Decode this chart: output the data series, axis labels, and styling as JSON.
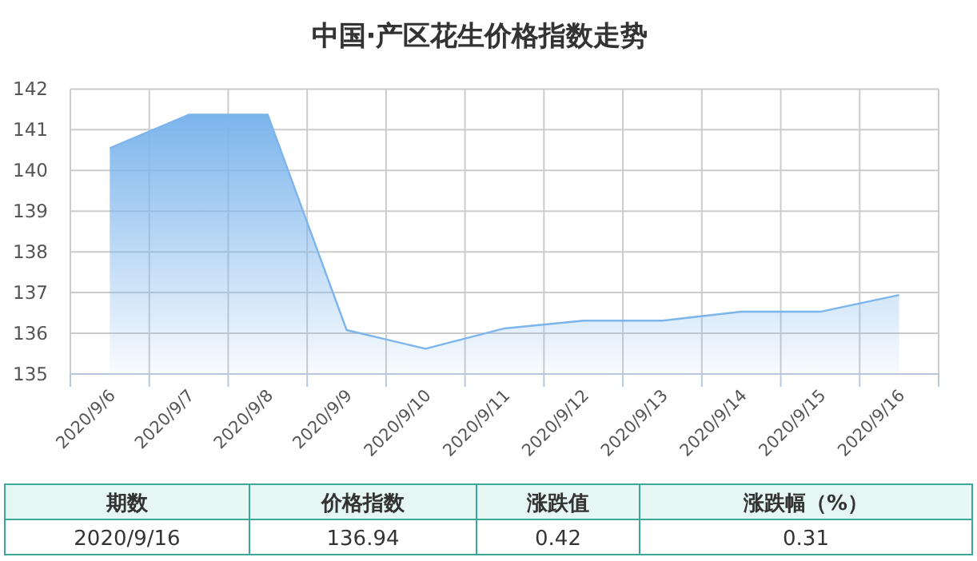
{
  "chart_data": {
    "type": "area",
    "title": "中国·产区花生价格指数走势",
    "categories": [
      "2020/9/6",
      "2020/9/7",
      "2020/9/8",
      "2020/9/9",
      "2020/9/10",
      "2020/9/11",
      "2020/9/12",
      "2020/9/13",
      "2020/9/14",
      "2020/9/15",
      "2020/9/16"
    ],
    "series": [
      {
        "color": "#7cb5ec",
        "values": [
          140.55,
          141.37,
          141.37,
          136.08,
          135.62,
          136.12,
          136.31,
          136.31,
          136.53,
          136.53,
          136.94
        ]
      }
    ],
    "ylim": [
      135,
      142
    ],
    "yticks": [
      135,
      136,
      137,
      138,
      139,
      140,
      141,
      142
    ],
    "grid": true,
    "annotations": [
      "期数",
      "价格指数",
      "涨跌值",
      "涨跌幅（%）",
      "2020/9/16",
      "136.94",
      "0.42",
      "0.31"
    ]
  }
}
